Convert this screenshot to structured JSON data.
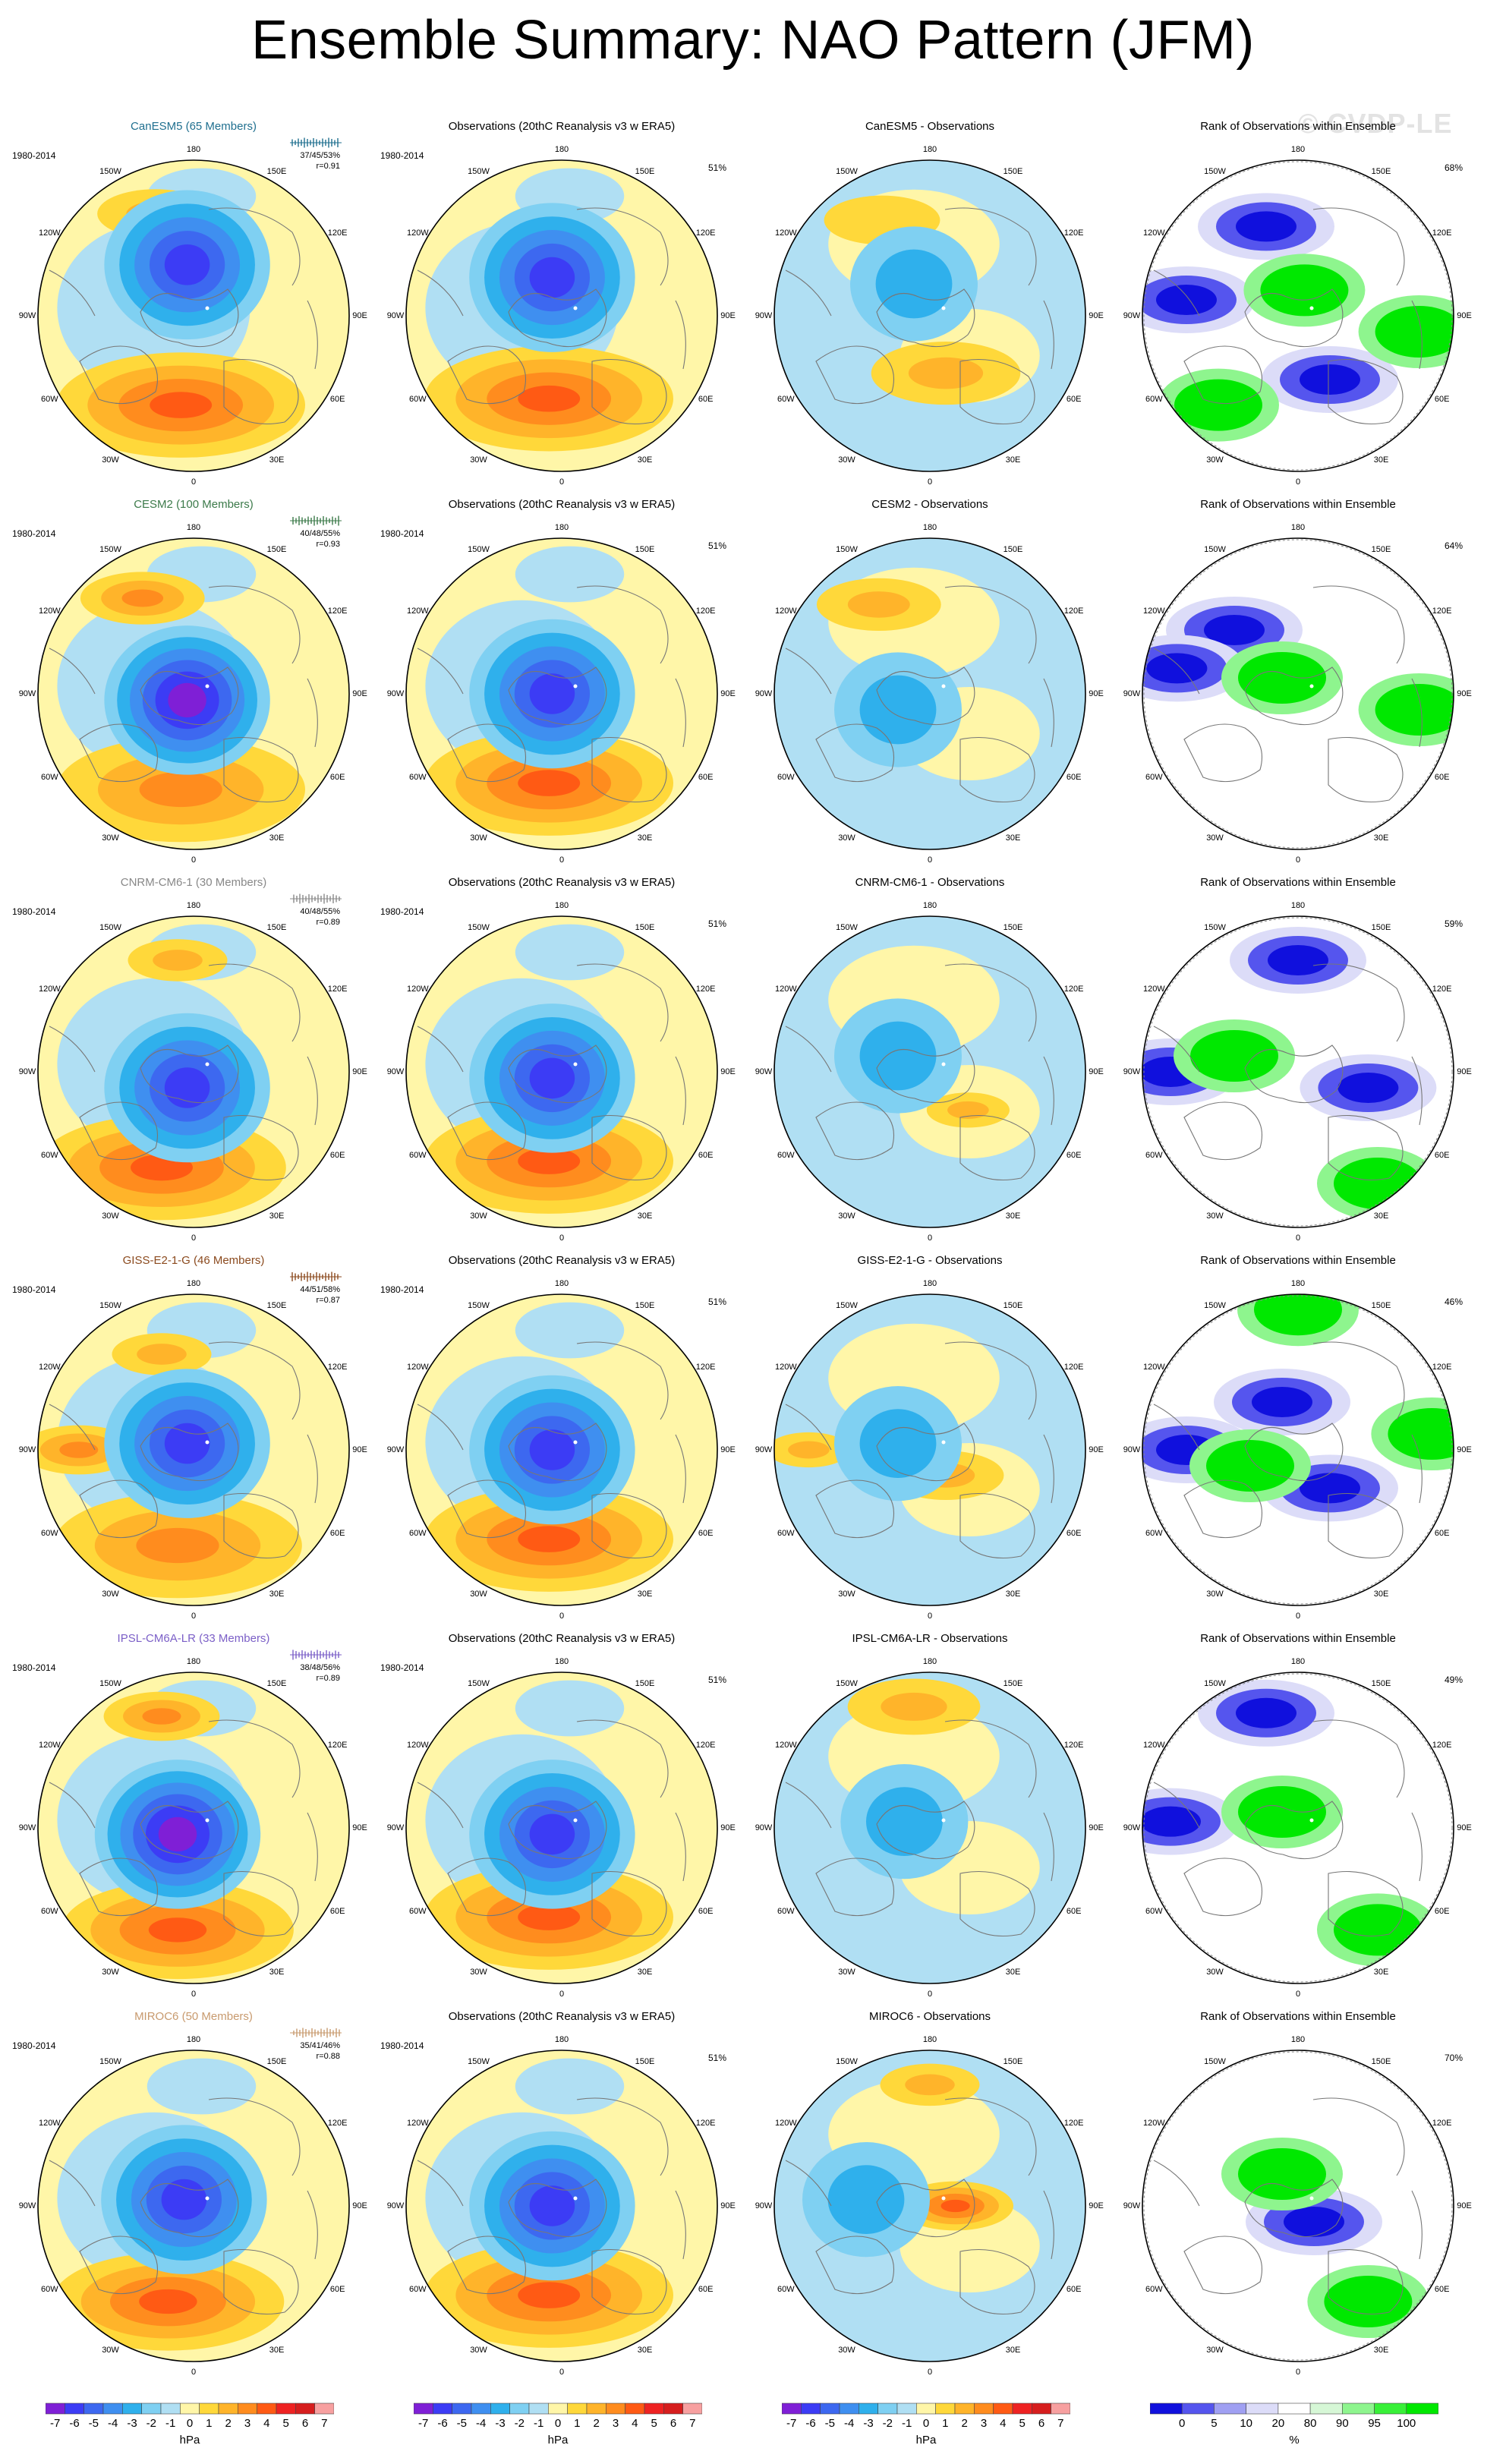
{
  "title": "Ensemble Summary: NAO Pattern (JFM)",
  "watermark": "© CVDP-LE",
  "period": "1980-2014",
  "lon_labels": [
    "180",
    "150E",
    "120E",
    "90E",
    "60E",
    "30E",
    "0",
    "30W",
    "60W",
    "90W",
    "120W",
    "150W"
  ],
  "rows": [
    {
      "model_title": "CanESM5 (65 Members)",
      "model_color": "#1f6f8f",
      "stats": "37/45/53%",
      "r": "r=0.91",
      "obs_title": "Observations (20thC Reanalysis v3 w ERA5)",
      "obs_pct": "51%",
      "diff_title": "CanESM5 - Observations",
      "rank_title": "Rank of Observations within Ensemble",
      "rank_pct": "68%",
      "fields": {
        "model": {
          "low": [
            -5.2,
            0.48,
            0.34
          ],
          "highs": [
            [
              4.0,
              0.46,
              0.78,
              0.3
            ],
            [
              2.5,
              0.38,
              0.18,
              0.14
            ]
          ]
        },
        "obs": {
          "low": [
            -5.6,
            0.47,
            0.38
          ],
          "highs": [
            [
              4.2,
              0.46,
              0.76,
              0.3
            ]
          ]
        },
        "diff": {
          "low": [
            -2.2,
            0.45,
            0.4
          ],
          "highs": [
            [
              2.0,
              0.55,
              0.68,
              0.18
            ],
            [
              1.6,
              0.35,
              0.2,
              0.14
            ]
          ]
        },
        "rank": {
          "blue": [
            [
              0.4,
              0.22
            ],
            [
              0.6,
              0.7
            ],
            [
              0.15,
              0.45
            ]
          ],
          "green": [
            [
              0.25,
              0.78
            ],
            [
              0.52,
              0.42
            ],
            [
              0.88,
              0.55
            ]
          ]
        }
      }
    },
    {
      "model_title": "CESM2 (100 Members)",
      "model_color": "#3c7a4a",
      "stats": "40/48/55%",
      "r": "r=0.93",
      "obs_title": "Observations (20thC Reanalysis v3 w ERA5)",
      "obs_pct": "51%",
      "diff_title": "CESM2 - Observations",
      "rank_title": "Rank of Observations within Ensemble",
      "rank_pct": "64%",
      "fields": {
        "model": {
          "low": [
            -6.0,
            0.48,
            0.52
          ],
          "highs": [
            [
              3.8,
              0.46,
              0.8,
              0.3
            ],
            [
              3.2,
              0.34,
              0.2,
              0.15
            ]
          ]
        },
        "obs": {
          "low": [
            -5.6,
            0.47,
            0.5
          ],
          "highs": [
            [
              4.2,
              0.46,
              0.78,
              0.3
            ]
          ]
        },
        "diff": {
          "low": [
            -2.6,
            0.4,
            0.55
          ],
          "highs": [
            [
              2.2,
              0.34,
              0.22,
              0.15
            ]
          ]
        },
        "rank": {
          "blue": [
            [
              0.3,
              0.3
            ],
            [
              0.12,
              0.42
            ]
          ],
          "green": [
            [
              0.45,
              0.45
            ],
            [
              0.88,
              0.55
            ]
          ]
        }
      }
    },
    {
      "model_title": "CNRM-CM6-1 (30 Members)",
      "model_color": "#888888",
      "stats": "40/48/55%",
      "r": "r=0.89",
      "obs_title": "Observations (20thC Reanalysis v3 w ERA5)",
      "obs_pct": "51%",
      "diff_title": "CNRM-CM6-1 - Observations",
      "rank_title": "Rank of Observations within Ensemble",
      "rank_pct": "59%",
      "fields": {
        "model": {
          "low": [
            -5.8,
            0.48,
            0.55
          ],
          "highs": [
            [
              4.6,
              0.4,
              0.8,
              0.3
            ],
            [
              2.0,
              0.45,
              0.15,
              0.12
            ]
          ]
        },
        "obs": {
          "low": [
            -5.6,
            0.47,
            0.52
          ],
          "highs": [
            [
              4.2,
              0.46,
              0.78,
              0.3
            ]
          ]
        },
        "diff": {
          "low": [
            -2.4,
            0.4,
            0.45
          ],
          "highs": [
            [
              2.0,
              0.62,
              0.62,
              0.1
            ]
          ]
        },
        "rank": {
          "blue": [
            [
              0.5,
              0.15
            ],
            [
              0.72,
              0.55
            ],
            [
              0.1,
              0.5
            ]
          ],
          "green": [
            [
              0.3,
              0.45
            ],
            [
              0.75,
              0.85
            ]
          ]
        }
      }
    },
    {
      "model_title": "GISS-E2-1-G (46 Members)",
      "model_color": "#8b4a1e",
      "stats": "44/51/58%",
      "r": "r=0.87",
      "obs_title": "Observations (20thC Reanalysis v3 w ERA5)",
      "obs_pct": "51%",
      "diff_title": "GISS-E2-1-G - Observations",
      "rank_title": "Rank of Observations within Ensemble",
      "rank_pct": "46%",
      "fields": {
        "model": {
          "low": [
            -5.0,
            0.48,
            0.48
          ],
          "highs": [
            [
              3.6,
              0.45,
              0.8,
              0.3
            ],
            [
              3.0,
              0.14,
              0.5,
              0.14
            ],
            [
              2.0,
              0.4,
              0.2,
              0.12
            ]
          ]
        },
        "obs": {
          "low": [
            -5.6,
            0.47,
            0.5
          ],
          "highs": [
            [
              4.2,
              0.46,
              0.78,
              0.3
            ]
          ]
        },
        "diff": {
          "low": [
            -2.0,
            0.4,
            0.48
          ],
          "highs": [
            [
              2.6,
              0.55,
              0.58,
              0.14
            ],
            [
              2.0,
              0.12,
              0.5,
              0.1
            ]
          ]
        },
        "rank": {
          "blue": [
            [
              0.15,
              0.5
            ],
            [
              0.45,
              0.35
            ],
            [
              0.6,
              0.62
            ]
          ],
          "green": [
            [
              0.5,
              0.06
            ],
            [
              0.35,
              0.55
            ],
            [
              0.92,
              0.45
            ]
          ]
        }
      }
    },
    {
      "model_title": "IPSL-CM6A-LR (33 Members)",
      "model_color": "#7b5fc7",
      "stats": "38/48/56%",
      "r": "r=0.89",
      "obs_title": "Observations (20thC Reanalysis v3 w ERA5)",
      "obs_pct": "51%",
      "diff_title": "IPSL-CM6A-LR - Observations",
      "rank_title": "Rank of Observations within Ensemble",
      "rank_pct": "49%",
      "fields": {
        "model": {
          "low": [
            -6.0,
            0.45,
            0.52
          ],
          "highs": [
            [
              4.2,
              0.45,
              0.82,
              0.28
            ],
            [
              3.0,
              0.4,
              0.15,
              0.14
            ]
          ]
        },
        "obs": {
          "low": [
            -5.6,
            0.47,
            0.52
          ],
          "highs": [
            [
              4.2,
              0.46,
              0.78,
              0.3
            ]
          ]
        },
        "diff": {
          "low": [
            -2.2,
            0.42,
            0.48
          ],
          "highs": [
            [
              2.4,
              0.45,
              0.12,
              0.16
            ]
          ]
        },
        "rank": {
          "blue": [
            [
              0.4,
              0.14
            ],
            [
              0.1,
              0.48
            ]
          ],
          "green": [
            [
              0.45,
              0.45
            ],
            [
              0.75,
              0.82
            ]
          ]
        }
      }
    },
    {
      "model_title": "MIROC6 (50 Members)",
      "model_color": "#c89a6e",
      "stats": "35/41/46%",
      "r": "r=0.88",
      "obs_title": "Observations (20thC Reanalysis v3 w ERA5)",
      "obs_pct": "51%",
      "diff_title": "MIROC6 - Observations",
      "rank_title": "Rank of Observations within Ensemble",
      "rank_pct": "70%",
      "fields": {
        "model": {
          "low": [
            -5.0,
            0.47,
            0.48
          ],
          "highs": [
            [
              4.0,
              0.42,
              0.8,
              0.28
            ]
          ]
        },
        "obs": {
          "low": [
            -5.6,
            0.47,
            0.5
          ],
          "highs": [
            [
              4.2,
              0.46,
              0.78,
              0.3
            ]
          ]
        },
        "diff": {
          "low": [
            -2.0,
            0.3,
            0.48
          ],
          "highs": [
            [
              4.0,
              0.58,
              0.5,
              0.14
            ],
            [
              2.0,
              0.5,
              0.12,
              0.12
            ]
          ]
        },
        "rank": {
          "blue": [
            [
              0.55,
              0.55
            ]
          ],
          "green": [
            [
              0.72,
              0.8
            ],
            [
              0.45,
              0.4
            ]
          ]
        }
      }
    }
  ],
  "colorbars": [
    {
      "ticks": [
        "-7",
        "-6",
        "-5",
        "-4",
        "-3",
        "-2",
        "-1",
        "0",
        "1",
        "2",
        "3",
        "4",
        "5",
        "6",
        "7"
      ],
      "unit": "hPa"
    },
    {
      "ticks": [
        "-7",
        "-6",
        "-5",
        "-4",
        "-3",
        "-2",
        "-1",
        "0",
        "1",
        "2",
        "3",
        "4",
        "5",
        "6",
        "7"
      ],
      "unit": "hPa"
    },
    {
      "ticks": [
        "-7",
        "-6",
        "-5",
        "-4",
        "-3",
        "-2",
        "-1",
        "0",
        "1",
        "2",
        "3",
        "4",
        "5",
        "6",
        "7"
      ],
      "unit": "hPa"
    },
    {
      "ticks": [
        "0",
        "5",
        "10",
        "20",
        "80",
        "90",
        "95",
        "100"
      ],
      "unit": "%"
    }
  ],
  "colors": {
    "diverging": [
      "#7f1fd6",
      "#3c3cf5",
      "#3d68f0",
      "#3f8ff0",
      "#2fb0ec",
      "#7fd0f2",
      "#b0dff3",
      "#fff6a8",
      "#ffd83a",
      "#ffb42a",
      "#ff8c1e",
      "#ff5a14",
      "#ee2222",
      "#d61e1e",
      "#f7a0a0"
    ],
    "rank": [
      "#1010dd",
      "#5555ee",
      "#a0a0f2",
      "#dcdcf8",
      "#ffffff",
      "#d6f7d6",
      "#8ef58e",
      "#38f038",
      "#00e800"
    ]
  }
}
